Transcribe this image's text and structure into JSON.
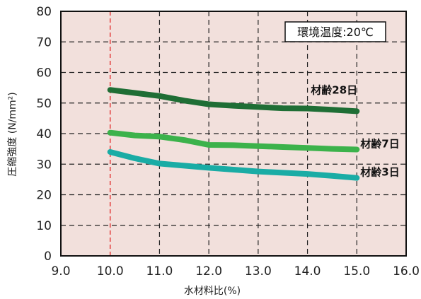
{
  "chart_data": {
    "type": "line",
    "xlabel": "水材料比(%)",
    "ylabel": "圧縮強度 (N/mm²)",
    "xlim": [
      9.0,
      16.0
    ],
    "ylim": [
      0,
      80
    ],
    "x_ticks": [
      "9.0",
      "10.0",
      "11.0",
      "12.0",
      "13.0",
      "14.0",
      "15.0",
      "16.0"
    ],
    "y_ticks": [
      "0",
      "10",
      "20",
      "30",
      "40",
      "50",
      "60",
      "70",
      "80"
    ],
    "highlight_x": 10.0,
    "highlight_label": "10.0",
    "annotation": "環境温度:20℃",
    "grid": true,
    "background_color": "#f2e0dc",
    "series": [
      {
        "name": "材齢28日",
        "color": "#1f6e35",
        "x": [
          10.0,
          10.5,
          11.0,
          11.5,
          12.0,
          12.5,
          13.0,
          13.5,
          14.0,
          14.5,
          15.0
        ],
        "y": [
          54.3,
          53.3,
          52.3,
          50.8,
          49.6,
          49.1,
          48.7,
          48.3,
          48.2,
          47.8,
          47.3
        ]
      },
      {
        "name": "材齢7日",
        "color": "#3cb24b",
        "x": [
          10.0,
          10.5,
          11.0,
          11.5,
          12.0,
          12.5,
          13.0,
          13.5,
          14.0,
          14.5,
          15.0
        ],
        "y": [
          40.3,
          39.4,
          39.0,
          37.9,
          36.3,
          36.2,
          35.9,
          35.6,
          35.3,
          35.0,
          34.8
        ]
      },
      {
        "name": "材齢3日",
        "color": "#1aaca5",
        "x": [
          10.0,
          10.5,
          11.0,
          11.5,
          12.0,
          12.5,
          13.0,
          13.5,
          14.0,
          14.5,
          15.0
        ],
        "y": [
          34.0,
          31.9,
          30.2,
          29.5,
          28.8,
          28.2,
          27.6,
          27.2,
          26.8,
          26.2,
          25.5
        ]
      }
    ]
  },
  "colors": {
    "axis": "#111111",
    "grid": "#222222",
    "highlight": "#e02020",
    "tick_text": "#222222"
  }
}
